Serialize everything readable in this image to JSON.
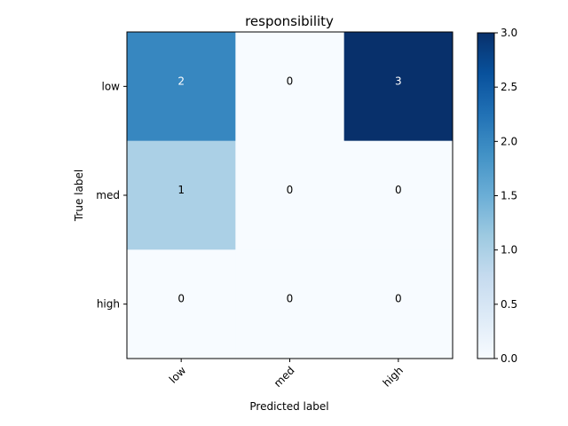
{
  "chart_data": {
    "type": "heatmap",
    "title": "responsibility",
    "xlabel": "Predicted label",
    "ylabel": "True label",
    "x_categories": [
      "low",
      "med",
      "high"
    ],
    "y_categories": [
      "low",
      "med",
      "high"
    ],
    "matrix": [
      [
        2,
        0,
        3
      ],
      [
        1,
        0,
        0
      ],
      [
        0,
        0,
        0
      ]
    ],
    "colormap": "Blues",
    "vmin": 0.0,
    "vmax": 3.0,
    "colorbar_ticks": [
      "0.0",
      "0.5",
      "1.0",
      "1.5",
      "2.0",
      "2.5",
      "3.0"
    ],
    "grid": false
  }
}
